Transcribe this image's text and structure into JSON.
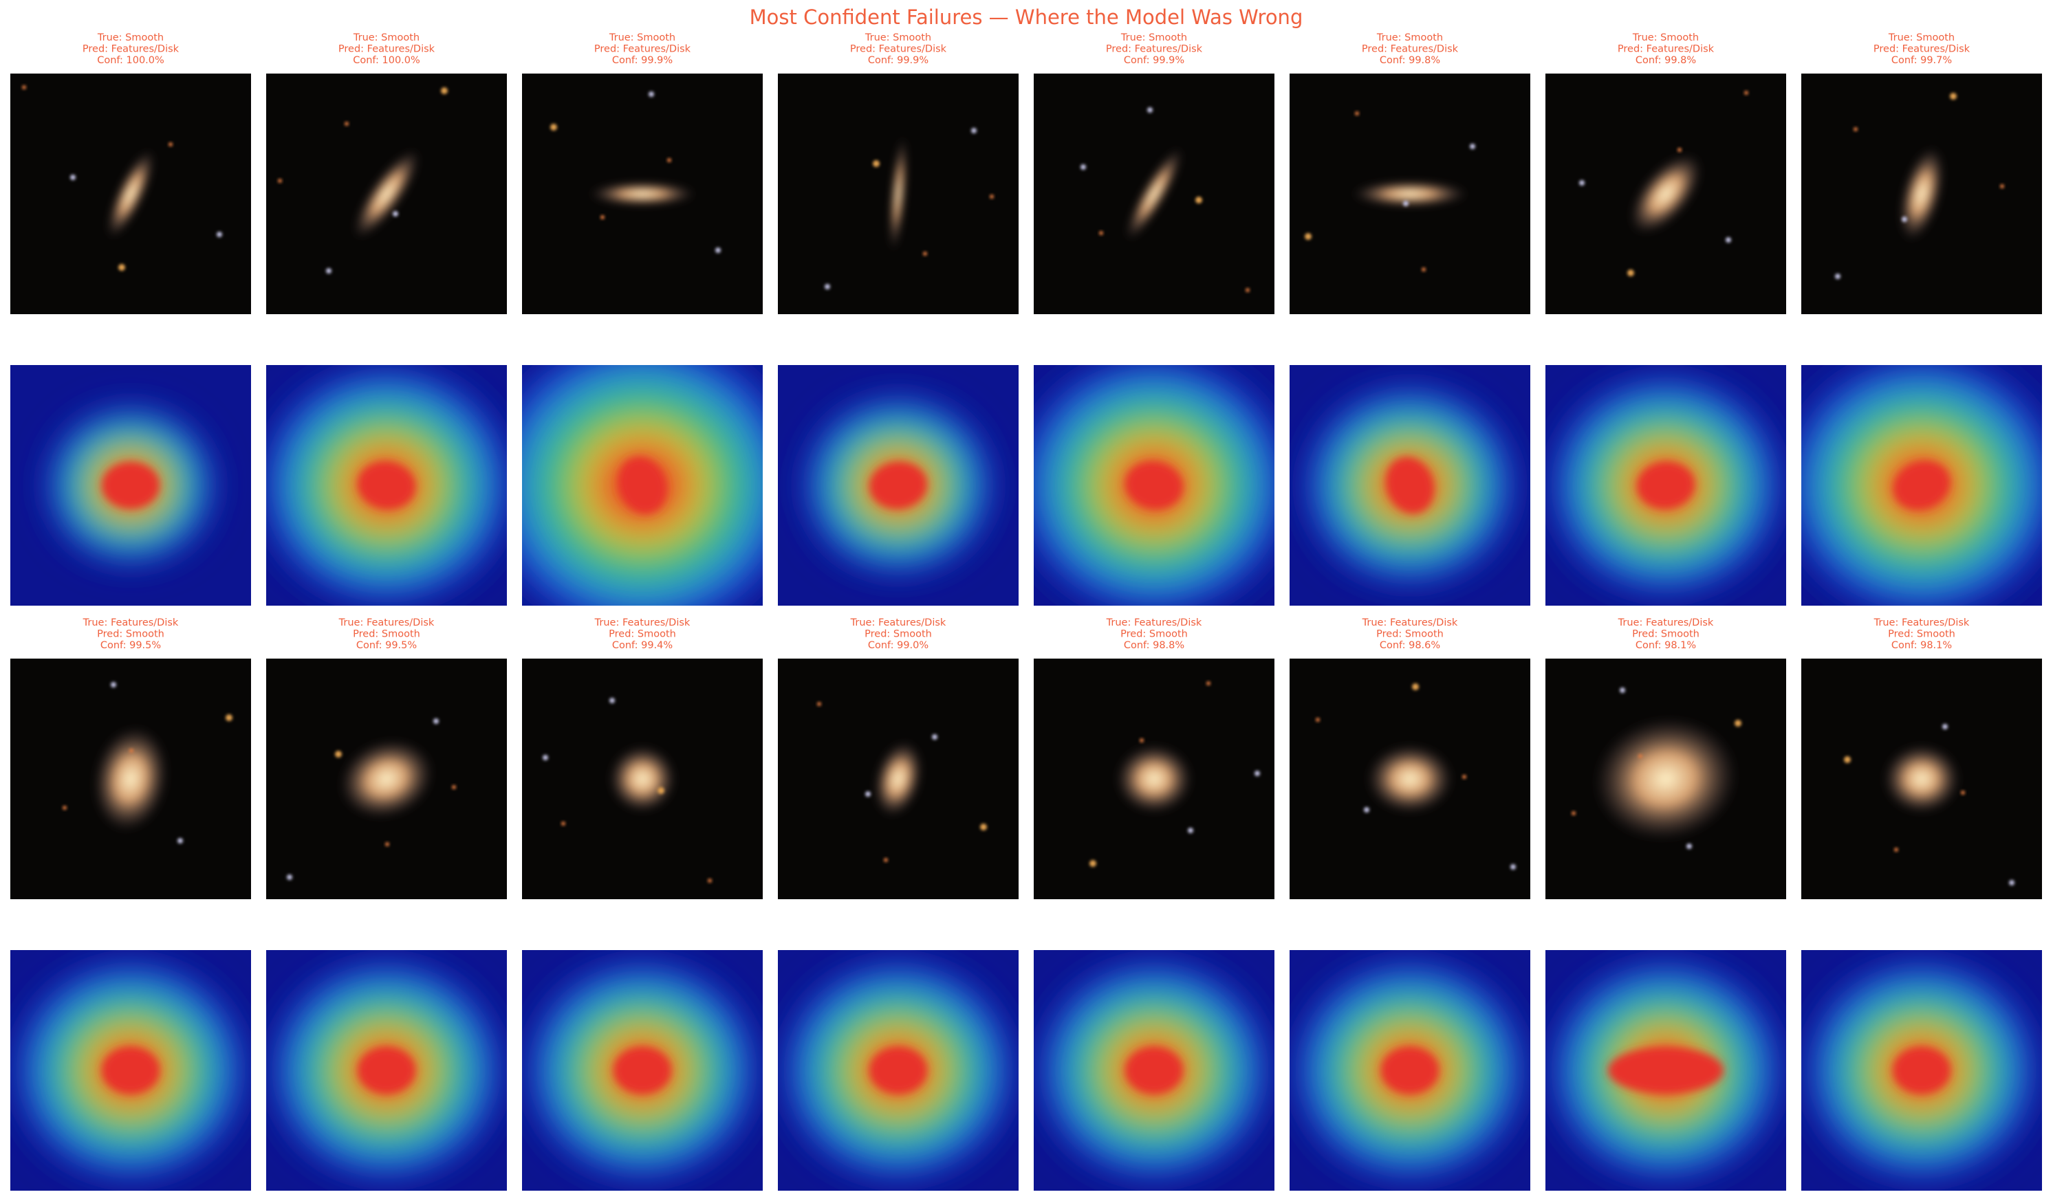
{
  "title": "Most Confident Failures — Where the Model Was Wrong",
  "panels": [
    {
      "true": "True: Smooth",
      "pred": "Pred: Features/Disk",
      "conf": "Conf: 100.0%"
    },
    {
      "true": "True: Smooth",
      "pred": "Pred: Features/Disk",
      "conf": "Conf: 100.0%"
    },
    {
      "true": "True: Smooth",
      "pred": "Pred: Features/Disk",
      "conf": "Conf: 99.9%"
    },
    {
      "true": "True: Smooth",
      "pred": "Pred: Features/Disk",
      "conf": "Conf: 99.9%"
    },
    {
      "true": "True: Smooth",
      "pred": "Pred: Features/Disk",
      "conf": "Conf: 99.9%"
    },
    {
      "true": "True: Smooth",
      "pred": "Pred: Features/Disk",
      "conf": "Conf: 99.8%"
    },
    {
      "true": "True: Smooth",
      "pred": "Pred: Features/Disk",
      "conf": "Conf: 99.8%"
    },
    {
      "true": "True: Smooth",
      "pred": "Pred: Features/Disk",
      "conf": "Conf: 99.7%"
    },
    {
      "true": "True: Features/Disk",
      "pred": "Pred: Smooth",
      "conf": "Conf: 99.5%"
    },
    {
      "true": "True: Features/Disk",
      "pred": "Pred: Smooth",
      "conf": "Conf: 99.5%"
    },
    {
      "true": "True: Features/Disk",
      "pred": "Pred: Smooth",
      "conf": "Conf: 99.4%"
    },
    {
      "true": "True: Features/Disk",
      "pred": "Pred: Smooth",
      "conf": "Conf: 99.0%"
    },
    {
      "true": "True: Features/Disk",
      "pred": "Pred: Smooth",
      "conf": "Conf: 98.8%"
    },
    {
      "true": "True: Features/Disk",
      "pred": "Pred: Smooth",
      "conf": "Conf: 98.6%"
    },
    {
      "true": "True: Features/Disk",
      "pred": "Pred: Smooth",
      "conf": "Conf: 98.1%"
    },
    {
      "true": "True: Features/Disk",
      "pred": "Pred: Smooth",
      "conf": "Conf: 98.1%"
    }
  ]
}
